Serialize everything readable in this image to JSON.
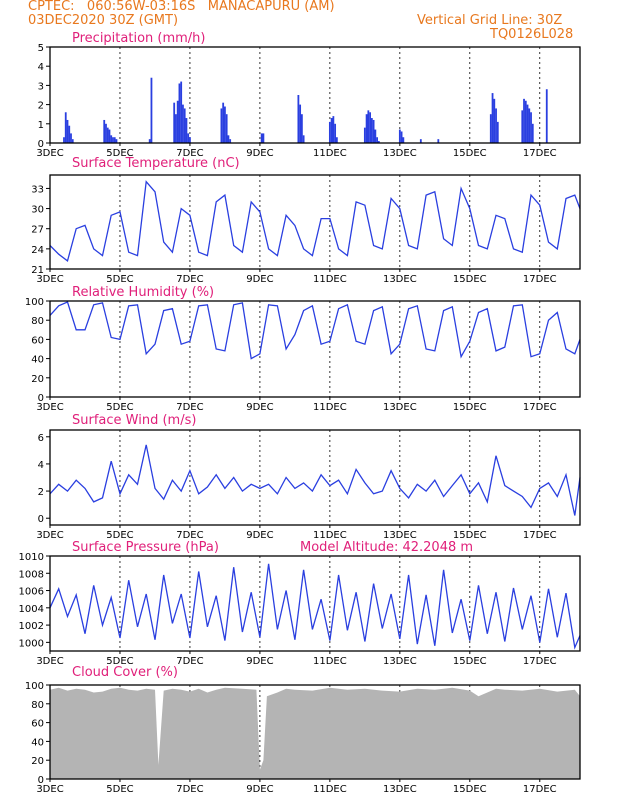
{
  "header": {
    "line1_left": "CPTEC:   060:56W-03:16S   MANACAPURU (AM)",
    "line2_left": "03DEC2020 30Z (GMT)",
    "line1_right": "Vertical Grid Line: 30Z",
    "line2_right": "TQ0126L028"
  },
  "colors": {
    "title": "#e0207a",
    "header": "#e8781e",
    "series": "#2a3fe0",
    "cloud": "#b4b4b4"
  },
  "x_labels": [
    "3DEC",
    "5DEC",
    "7DEC",
    "9DEC",
    "11DEC",
    "13DEC",
    "15DEC",
    "17DEC"
  ],
  "x_label_days": [
    0,
    2,
    4,
    6,
    8,
    10,
    12,
    14
  ],
  "x_range_days": [
    0,
    15.15
  ],
  "chart_data": [
    {
      "type": "bar",
      "title": "Precipitation (mm/h)",
      "ylim": [
        0,
        5
      ],
      "yticks": [
        0,
        1,
        2,
        3,
        4,
        5
      ],
      "x_day": [
        0.4,
        0.45,
        0.5,
        0.55,
        0.6,
        0.65,
        1.55,
        1.6,
        1.65,
        1.7,
        1.75,
        1.8,
        1.85,
        1.9,
        2.85,
        2.9,
        3.55,
        3.6,
        3.65,
        3.7,
        3.75,
        3.8,
        3.85,
        3.9,
        3.95,
        4.0,
        4.9,
        4.95,
        5.0,
        5.05,
        5.1,
        5.15,
        6.05,
        6.1,
        7.1,
        7.15,
        7.2,
        7.25,
        8.0,
        8.05,
        8.1,
        8.15,
        8.2,
        9.0,
        9.05,
        9.1,
        9.15,
        9.2,
        9.25,
        9.3,
        9.35,
        9.4,
        10.0,
        10.05,
        10.1,
        10.6,
        11.1,
        12.6,
        12.65,
        12.7,
        12.75,
        12.8,
        13.5,
        13.55,
        13.6,
        13.65,
        13.7,
        13.75,
        13.8,
        14.2
      ],
      "values": [
        0.3,
        1.6,
        1.2,
        0.9,
        0.5,
        0.2,
        1.2,
        1.0,
        0.8,
        0.7,
        0.4,
        0.3,
        0.3,
        0.2,
        0.2,
        3.4,
        2.1,
        1.5,
        2.2,
        3.1,
        3.2,
        2.0,
        1.8,
        1.3,
        0.5,
        0.3,
        1.8,
        2.1,
        1.9,
        1.5,
        0.4,
        0.2,
        0.5,
        0.5,
        2.5,
        2.0,
        1.5,
        0.4,
        1.1,
        1.3,
        1.4,
        1.0,
        0.3,
        0.8,
        1.5,
        1.7,
        1.6,
        1.3,
        1.2,
        0.7,
        0.3,
        0.1,
        0.7,
        0.6,
        0.3,
        0.2,
        0.2,
        1.5,
        2.6,
        2.3,
        1.8,
        1.1,
        1.7,
        2.3,
        2.2,
        2.0,
        1.8,
        1.6,
        1.0,
        2.8
      ]
    },
    {
      "type": "line",
      "title": "Surface Temperature (nC)",
      "ylim": [
        21,
        35
      ],
      "yticks": [
        21,
        24,
        27,
        30,
        33
      ],
      "x_day": [
        0,
        0.25,
        0.5,
        0.75,
        1,
        1.25,
        1.5,
        1.75,
        2,
        2.25,
        2.5,
        2.75,
        3,
        3.25,
        3.5,
        3.75,
        4,
        4.25,
        4.5,
        4.75,
        5,
        5.25,
        5.5,
        5.75,
        6,
        6.25,
        6.5,
        6.75,
        7,
        7.25,
        7.5,
        7.75,
        8,
        8.25,
        8.5,
        8.75,
        9,
        9.25,
        9.5,
        9.75,
        10,
        10.25,
        10.5,
        10.75,
        11,
        11.25,
        11.5,
        11.75,
        12,
        12.25,
        12.5,
        12.75,
        13,
        13.25,
        13.5,
        13.75,
        14,
        14.25,
        14.5,
        14.75,
        15,
        15.15
      ],
      "values": [
        24.5,
        23.2,
        22.2,
        27,
        27.5,
        24,
        23,
        29,
        29.5,
        23.5,
        23,
        34,
        32.5,
        25,
        23.5,
        30,
        29,
        23.5,
        23,
        31,
        32,
        24.5,
        23.5,
        31,
        29.5,
        24,
        23,
        29,
        27.5,
        24,
        23,
        28.5,
        28.5,
        24,
        23,
        31,
        30.5,
        24.5,
        24,
        31.5,
        30,
        24.5,
        24,
        32,
        32.5,
        25.5,
        24.5,
        33,
        30,
        24.5,
        24,
        29,
        28.5,
        24,
        23.5,
        32,
        30.5,
        25,
        24,
        31.5,
        32,
        30
      ]
    },
    {
      "type": "line",
      "title": "Relative Humidity (%)",
      "ylim": [
        0,
        100
      ],
      "yticks": [
        0,
        20,
        40,
        60,
        80,
        100
      ],
      "x_day": [
        0,
        0.25,
        0.5,
        0.75,
        1,
        1.25,
        1.5,
        1.75,
        2,
        2.25,
        2.5,
        2.75,
        3,
        3.25,
        3.5,
        3.75,
        4,
        4.25,
        4.5,
        4.75,
        5,
        5.25,
        5.5,
        5.75,
        6,
        6.25,
        6.5,
        6.75,
        7,
        7.25,
        7.5,
        7.75,
        8,
        8.25,
        8.5,
        8.75,
        9,
        9.25,
        9.5,
        9.75,
        10,
        10.25,
        10.5,
        10.75,
        11,
        11.25,
        11.5,
        11.75,
        12,
        12.25,
        12.5,
        12.75,
        13,
        13.25,
        13.5,
        13.75,
        14,
        14.25,
        14.5,
        14.75,
        15,
        15.15
      ],
      "values": [
        85,
        95,
        99,
        70,
        70,
        96,
        98,
        62,
        60,
        95,
        96,
        45,
        55,
        90,
        92,
        55,
        58,
        95,
        96,
        50,
        48,
        96,
        98,
        40,
        45,
        96,
        95,
        50,
        65,
        90,
        95,
        55,
        58,
        92,
        96,
        58,
        55,
        90,
        94,
        45,
        55,
        92,
        95,
        50,
        48,
        90,
        94,
        42,
        58,
        88,
        92,
        48,
        52,
        95,
        96,
        42,
        45,
        80,
        88,
        50,
        45,
        60
      ]
    },
    {
      "type": "line",
      "title": "Surface Wind (m/s)",
      "ylim": [
        -0.5,
        6.5
      ],
      "yticks": [
        0,
        2,
        4,
        6
      ],
      "x_day": [
        0,
        0.25,
        0.5,
        0.75,
        1,
        1.25,
        1.5,
        1.75,
        2,
        2.25,
        2.5,
        2.75,
        3,
        3.25,
        3.5,
        3.75,
        4,
        4.25,
        4.5,
        4.75,
        5,
        5.25,
        5.5,
        5.75,
        6,
        6.25,
        6.5,
        6.75,
        7,
        7.25,
        7.5,
        7.75,
        8,
        8.25,
        8.5,
        8.75,
        9,
        9.25,
        9.5,
        9.75,
        10,
        10.25,
        10.5,
        10.75,
        11,
        11.25,
        11.5,
        11.75,
        12,
        12.25,
        12.5,
        12.75,
        13,
        13.25,
        13.5,
        13.75,
        14,
        14.25,
        14.5,
        14.75,
        15,
        15.15
      ],
      "values": [
        1.8,
        2.5,
        2.0,
        2.8,
        2.2,
        1.2,
        1.5,
        4.2,
        1.8,
        3.2,
        2.5,
        5.4,
        2.2,
        1.4,
        2.8,
        2.0,
        3.5,
        1.8,
        2.3,
        3.2,
        2.2,
        3.0,
        2.0,
        2.5,
        2.2,
        2.5,
        1.8,
        3.0,
        2.2,
        2.6,
        2.0,
        3.2,
        2.4,
        2.8,
        1.8,
        3.6,
        2.6,
        1.8,
        2.0,
        3.5,
        2.2,
        1.5,
        2.5,
        2.0,
        2.8,
        1.6,
        2.4,
        3.2,
        1.8,
        2.6,
        1.2,
        4.6,
        2.4,
        2.0,
        1.6,
        0.8,
        2.2,
        2.6,
        1.6,
        3.2,
        0.2,
        3.0
      ]
    },
    {
      "type": "line",
      "title": "Surface Pressure (hPa)",
      "annotation": "Model Altitude: 42.2048 m",
      "ylim": [
        999,
        1010
      ],
      "yticks": [
        1000,
        1002,
        1004,
        1006,
        1008,
        1010
      ],
      "x_day": [
        0,
        0.25,
        0.5,
        0.75,
        1,
        1.25,
        1.5,
        1.75,
        2,
        2.25,
        2.5,
        2.75,
        3,
        3.25,
        3.5,
        3.75,
        4,
        4.25,
        4.5,
        4.75,
        5,
        5.25,
        5.5,
        5.75,
        6,
        6.25,
        6.5,
        6.75,
        7,
        7.25,
        7.5,
        7.75,
        8,
        8.25,
        8.5,
        8.75,
        9,
        9.25,
        9.5,
        9.75,
        10,
        10.25,
        10.5,
        10.75,
        11,
        11.25,
        11.5,
        11.75,
        12,
        12.25,
        12.5,
        12.75,
        13,
        13.25,
        13.5,
        13.75,
        14,
        14.25,
        14.5,
        14.75,
        15,
        15.15
      ],
      "values": [
        1004,
        1006.2,
        1003,
        1005.5,
        1001,
        1006.6,
        1002,
        1005.2,
        1000.5,
        1007.2,
        1001.8,
        1005.6,
        1000.3,
        1007.8,
        1002.2,
        1005.6,
        1000.5,
        1008.2,
        1001.8,
        1005.4,
        1000.2,
        1008.7,
        1001.2,
        1005.8,
        1000.6,
        1009.1,
        1001.5,
        1006,
        1000.3,
        1008.4,
        1001.5,
        1005,
        1000.2,
        1007.8,
        1001.4,
        1005.8,
        1000.1,
        1006.8,
        1001.6,
        1005.6,
        1000.4,
        1007.8,
        999.8,
        1005.5,
        999.6,
        1008.4,
        1001.1,
        1005,
        1000.2,
        1006.6,
        1001,
        1005.8,
        1000.1,
        1006.3,
        1001.5,
        1005.4,
        1000,
        1006.2,
        1000.6,
        1005.7,
        999.4,
        1000.8
      ]
    },
    {
      "type": "area",
      "title": "Cloud Cover (%)",
      "ylim": [
        0,
        100
      ],
      "yticks": [
        0,
        20,
        40,
        60,
        80,
        100
      ],
      "x_day": [
        0,
        0.25,
        0.5,
        0.75,
        1,
        1.25,
        1.5,
        1.75,
        2,
        2.25,
        2.5,
        2.75,
        3,
        3.1,
        3.25,
        3.5,
        3.75,
        4,
        4.25,
        4.5,
        4.75,
        5,
        5.5,
        5.9,
        6.0,
        6.1,
        6.2,
        6.5,
        6.75,
        7,
        7.5,
        8,
        8.5,
        9,
        9.5,
        10,
        10.5,
        11,
        11.5,
        12,
        12.25,
        12.5,
        12.75,
        13,
        13.5,
        14,
        14.5,
        15,
        15.15
      ],
      "values": [
        95,
        97,
        94,
        96,
        95,
        92,
        93,
        96,
        97,
        95,
        94,
        96,
        95,
        15,
        94,
        96,
        95,
        93,
        96,
        92,
        95,
        97,
        96,
        95,
        10,
        20,
        88,
        92,
        96,
        95,
        94,
        97,
        95,
        96,
        94,
        93,
        96,
        95,
        97,
        94,
        88,
        92,
        96,
        95,
        94,
        96,
        93,
        95,
        88
      ]
    }
  ]
}
